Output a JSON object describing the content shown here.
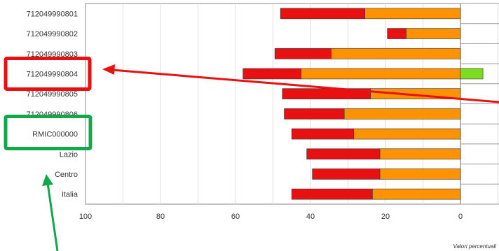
{
  "chart_data": {
    "type": "bar",
    "orientation": "horizontal",
    "stacked": true,
    "categories": [
      "712049990801",
      "712049990802",
      "712049990803",
      "712049990804",
      "712049990805",
      "712049990806",
      "RMIC000000",
      "Lazio",
      "Centro",
      "Italia"
    ],
    "series": [
      {
        "color": "#ff9200",
        "values": [
          -25.5,
          -14.5,
          -34.5,
          -42.5,
          -24,
          -31,
          -28.5,
          -21.5,
          -21.5,
          -23.5
        ]
      },
      {
        "color": "#e81010",
        "values": [
          -22.5,
          -5,
          -15,
          -15.5,
          -23.5,
          -16,
          -16.5,
          -19.5,
          -18,
          -21.5
        ]
      },
      {
        "color": "#7ddc1f",
        "values": [
          0,
          0,
          0,
          6,
          0,
          0,
          0,
          0,
          0,
          0
        ]
      }
    ],
    "xticks": [
      100,
      80,
      60,
      40,
      20,
      0
    ],
    "xlim": [
      -100,
      10
    ],
    "xlabel": "Valori percentuali",
    "grid": true,
    "colors": {
      "orange": "#ff9200",
      "red": "#e81010",
      "green": "#7ddc1f",
      "highlight_red": "#e81010",
      "highlight_green": "#10a84a"
    }
  }
}
